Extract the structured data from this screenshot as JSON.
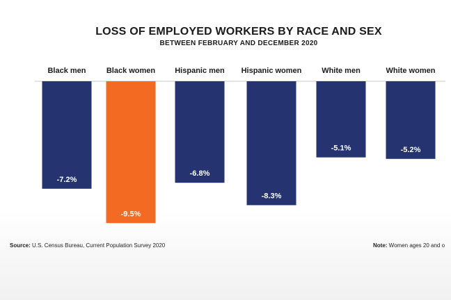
{
  "chart_data": {
    "type": "bar",
    "title": "LOSS OF EMPLOYED WORKERS BY RACE AND SEX",
    "subtitle": "BETWEEN FEBRUARY AND DECEMBER 2020",
    "categories": [
      "Black men",
      "Black women",
      "Hispanic men",
      "Hispanic women",
      "White men",
      "White women"
    ],
    "values": [
      -7.2,
      -9.5,
      -6.8,
      -8.3,
      -5.1,
      -5.2
    ],
    "data_labels": [
      "-7.2%",
      "-9.5%",
      "-6.8%",
      "-8.3%",
      "-5.1%",
      "-5.2%"
    ],
    "colors": [
      "#253470",
      "#f36a22",
      "#253470",
      "#253470",
      "#253470",
      "#253470"
    ],
    "ylim": [
      -10,
      0
    ],
    "grid": false,
    "legend": "none"
  },
  "footer": {
    "source_label": "Source:",
    "source_text": " U.S. Census Bureau, Current Population Survey 2020",
    "note_label": "Note:",
    "note_text": " Women ages 20 and o"
  }
}
